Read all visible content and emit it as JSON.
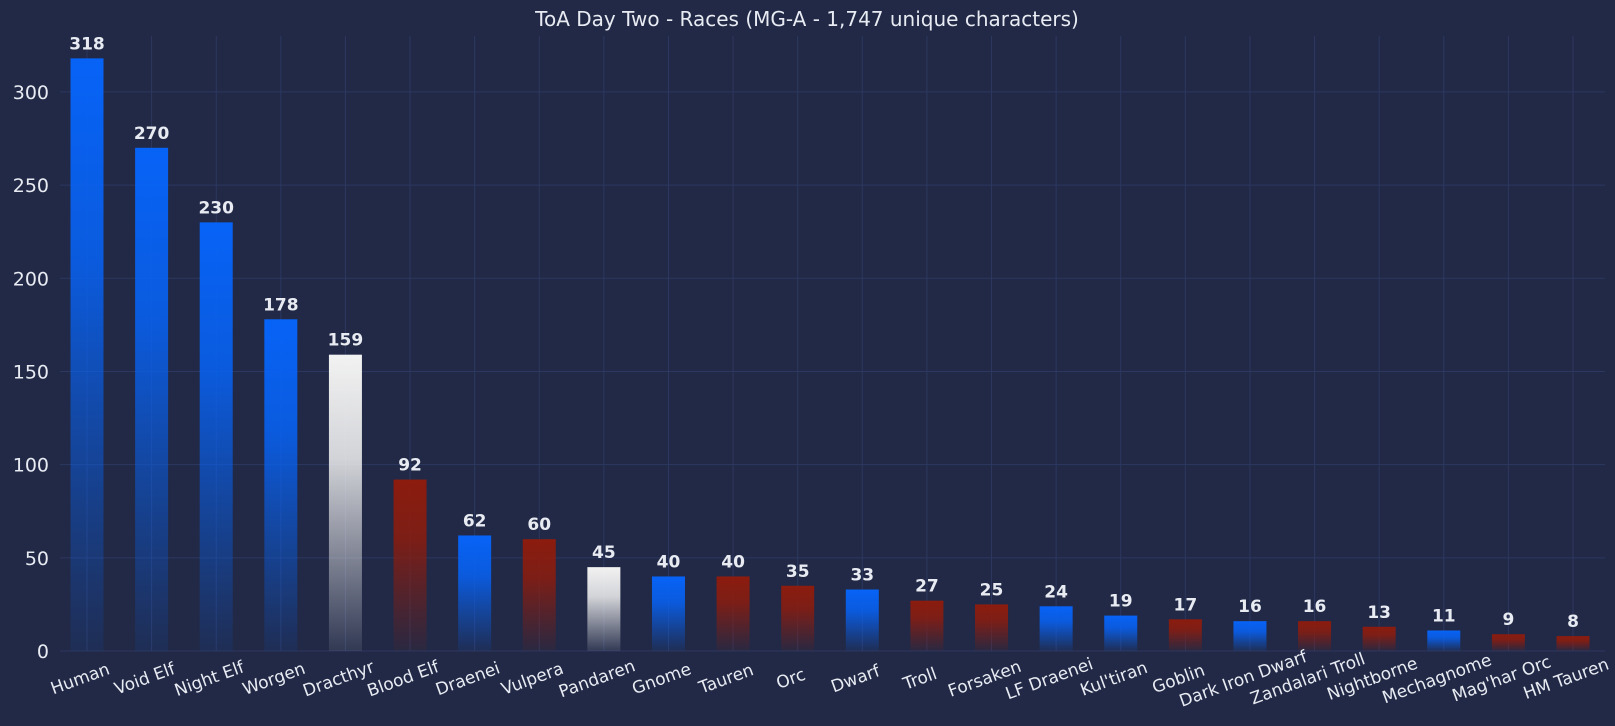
{
  "chart_data": {
    "type": "bar",
    "title": "ToA Day Two - Races (MG-A - 1,747 unique characters)",
    "xlabel": "",
    "ylabel": "",
    "ylim": [
      0,
      330
    ],
    "yticks": [
      0,
      50,
      100,
      150,
      200,
      250,
      300
    ],
    "grid": true,
    "categories": [
      "Human",
      "Void Elf",
      "Night Elf",
      "Worgen",
      "Dracthyr",
      "Blood Elf",
      "Draenei",
      "Vulpera",
      "Pandaren",
      "Gnome",
      "Tauren",
      "Orc",
      "Dwarf",
      "Troll",
      "Forsaken",
      "LF Draenei",
      "Kul'tiran",
      "Goblin",
      "Dark Iron Dwarf",
      "Zandalari Troll",
      "Nightborne",
      "Mechagnome",
      "Mag'har Orc",
      "HM Tauren"
    ],
    "values": [
      318,
      270,
      230,
      178,
      159,
      92,
      62,
      60,
      45,
      40,
      40,
      35,
      33,
      27,
      25,
      24,
      19,
      17,
      16,
      16,
      13,
      11,
      9,
      8
    ],
    "bar_factions": [
      "alliance",
      "alliance",
      "alliance",
      "alliance",
      "neutral",
      "horde",
      "alliance",
      "horde",
      "neutral",
      "alliance",
      "horde",
      "horde",
      "alliance",
      "horde",
      "horde",
      "alliance",
      "alliance",
      "horde",
      "alliance",
      "horde",
      "horde",
      "alliance",
      "horde",
      "horde"
    ],
    "colors": {
      "background": "#212946",
      "alliance": "#0763f7",
      "horde": "#8c1c0e",
      "neutral": "#f2f2f2",
      "grid": "#2d3860",
      "text": "#e8ebf2"
    }
  }
}
